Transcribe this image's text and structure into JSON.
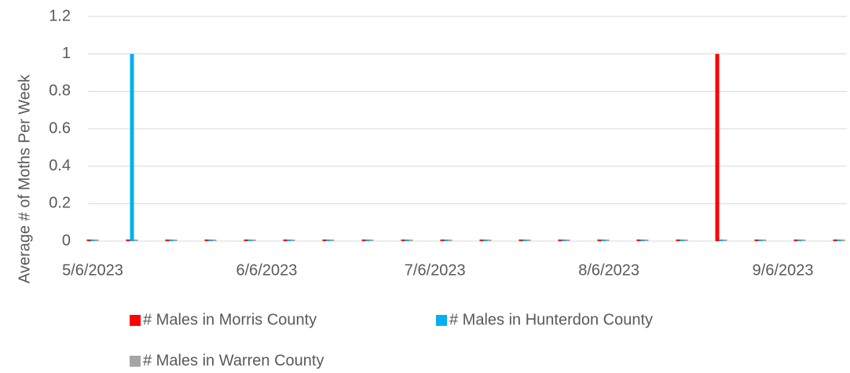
{
  "chart_data": {
    "type": "bar",
    "y_label": "Average # of Moths Per Week",
    "x": [
      "2023-05-06",
      "2023-05-13",
      "2023-05-20",
      "2023-05-27",
      "2023-06-03",
      "2023-06-10",
      "2023-06-17",
      "2023-06-24",
      "2023-07-01",
      "2023-07-08",
      "2023-07-15",
      "2023-07-22",
      "2023-07-29",
      "2023-08-05",
      "2023-08-12",
      "2023-08-19",
      "2023-08-26",
      "2023-09-02",
      "2023-09-09",
      "2023-09-16"
    ],
    "series": [
      {
        "name": "# Males in Morris County",
        "color": "#ff0000",
        "values": [
          0,
          0,
          0,
          0,
          0,
          0,
          0,
          0,
          0,
          0,
          0,
          0,
          0,
          0,
          0,
          0,
          1,
          0,
          0,
          0
        ]
      },
      {
        "name": "# Males in Hunterdon County",
        "color": "#00b0f0",
        "values": [
          0,
          1,
          0,
          0,
          0,
          0,
          0,
          0,
          0,
          0,
          0,
          0,
          0,
          0,
          0,
          0,
          0,
          0,
          0,
          0
        ]
      },
      {
        "name": "# Males in Warren County",
        "color": "#a5a5a5",
        "values": [
          0,
          0,
          0,
          0,
          0,
          0,
          0,
          0,
          0,
          0,
          0,
          0,
          0,
          0,
          0,
          0,
          0,
          0,
          0,
          0
        ]
      }
    ],
    "xlim": [
      "2023-05-06",
      "2023-09-16"
    ],
    "xticks": [
      {
        "value": "2023-05-06",
        "label": "5/6/2023"
      },
      {
        "value": "2023-06-06",
        "label": "6/6/2023"
      },
      {
        "value": "2023-07-06",
        "label": "7/6/2023"
      },
      {
        "value": "2023-08-06",
        "label": "8/6/2023"
      },
      {
        "value": "2023-09-06",
        "label": "9/6/2023"
      }
    ],
    "ylim": [
      0,
      1.2
    ],
    "yticks": [
      0,
      0.2,
      0.4,
      0.6,
      0.8,
      1,
      1.2
    ],
    "grid": true,
    "legend": "bottom"
  }
}
